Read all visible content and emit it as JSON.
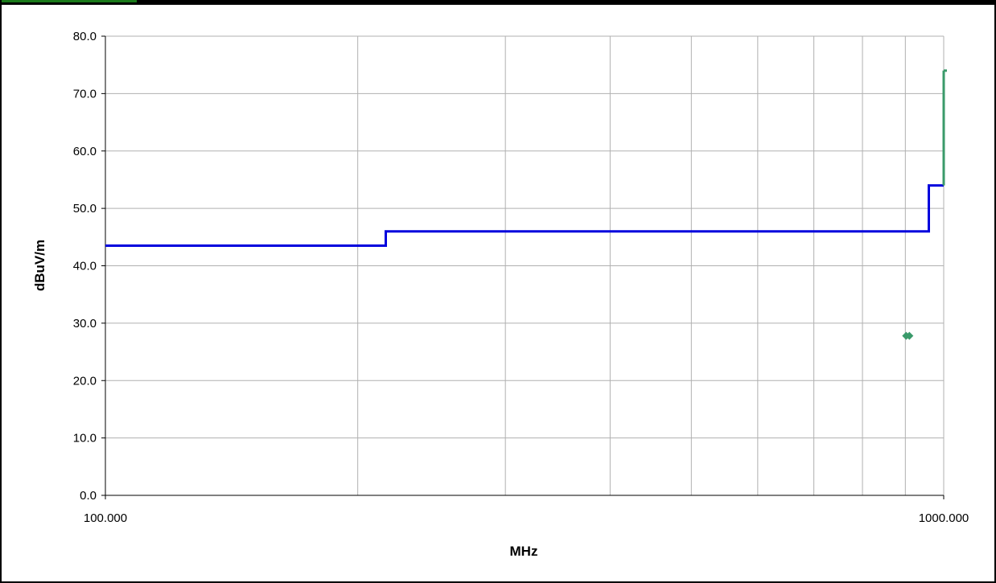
{
  "chart_data": {
    "type": "line",
    "title": "",
    "xlabel": "MHz",
    "ylabel": "dBuV/m",
    "x_scale": "log",
    "xlim": [
      100,
      1000
    ],
    "ylim": [
      0,
      80
    ],
    "x_ticks": [
      "100.000",
      "1000.000"
    ],
    "y_ticks": [
      "0.0",
      "10.0",
      "20.0",
      "30.0",
      "40.0",
      "50.0",
      "60.0",
      "70.0",
      "80.0"
    ],
    "grid": true,
    "legend": "none",
    "series": [
      {
        "kind": "step-line",
        "color": "#0000dd",
        "points": [
          [
            100,
            43.5
          ],
          [
            216,
            43.5
          ],
          [
            216,
            46.0
          ],
          [
            960,
            46.0
          ],
          [
            960,
            54.0
          ],
          [
            1000,
            54.0
          ]
        ]
      },
      {
        "kind": "step-line",
        "color": "#3a9a6a",
        "points": [
          [
            1000,
            54.0
          ],
          [
            1000,
            74.0
          ]
        ]
      },
      {
        "kind": "scatter",
        "color": "#3a9a6a",
        "marker": "diamond",
        "points": [
          [
            902,
            27.8
          ],
          [
            910,
            27.8
          ]
        ]
      }
    ]
  },
  "colors": {
    "frame": "#000000",
    "grid": "#b0b0b0",
    "top_accent": "#1a7a1a"
  }
}
